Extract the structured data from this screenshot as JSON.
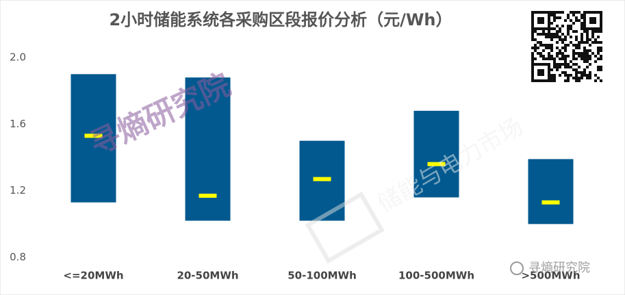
{
  "chart_data": {
    "type": "floating_bar",
    "title": "2小时储能系统各采购区段报价分析（元/Wh）",
    "categories": [
      "<=20MWh",
      "20-50MWh",
      "50-100MWh",
      "100-500MWh",
      ">500MWh"
    ],
    "low": [
      1.13,
      1.02,
      1.02,
      1.16,
      1.0
    ],
    "high": [
      1.9,
      1.88,
      1.5,
      1.68,
      1.39
    ],
    "values": [
      1.53,
      1.17,
      1.27,
      1.36,
      1.13
    ],
    "color": "#01598f",
    "marker_color": "#ffff00",
    "ylim": [
      0.8,
      2.0
    ],
    "yticks": [
      {
        "value": 0.8,
        "label": "0.8"
      },
      {
        "value": 1.2,
        "label": "1.2"
      },
      {
        "value": 1.6,
        "label": "1.6"
      },
      {
        "value": 2.0,
        "label": "2.0"
      }
    ],
    "grid": false,
    "watermarks": [
      "寻熵研究院",
      "储能与电力市场",
      "寻熵研究院"
    ]
  }
}
